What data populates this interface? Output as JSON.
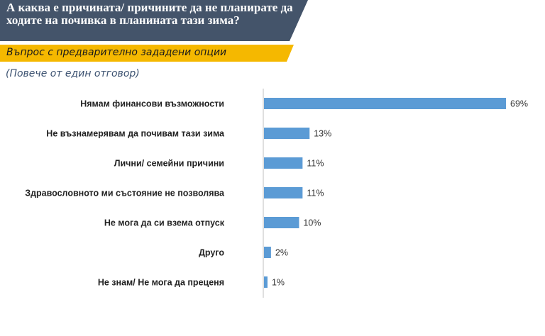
{
  "header": {
    "title": "А каква е причината/ причините да не планирате да ходите на почивка в планината тази зима?",
    "subtitle": "Въпрос с предварително зададени опции",
    "note": "(Повече от един отговор)"
  },
  "colors": {
    "title_bg": "#44546a",
    "subtitle_bg": "#f5b800",
    "bar": "#5b9bd5"
  },
  "chart_data": {
    "type": "bar",
    "orientation": "horizontal",
    "categories": [
      "Нямам финансови възможности",
      "Не възнамерявам да почивам тази зима",
      "Лични/ семейни причини",
      "Здравословното ми състояние не позволява",
      "Не мога да си взема отпуск",
      "Друго",
      "Не знам/ Не мога да преценя"
    ],
    "values": [
      69,
      13,
      11,
      11,
      10,
      2,
      1
    ],
    "value_labels": [
      "69%",
      "13%",
      "11%",
      "11%",
      "10%",
      "2%",
      "1%"
    ],
    "unit": "%",
    "xlim": [
      0,
      75
    ],
    "grid": false,
    "legend": "none"
  }
}
